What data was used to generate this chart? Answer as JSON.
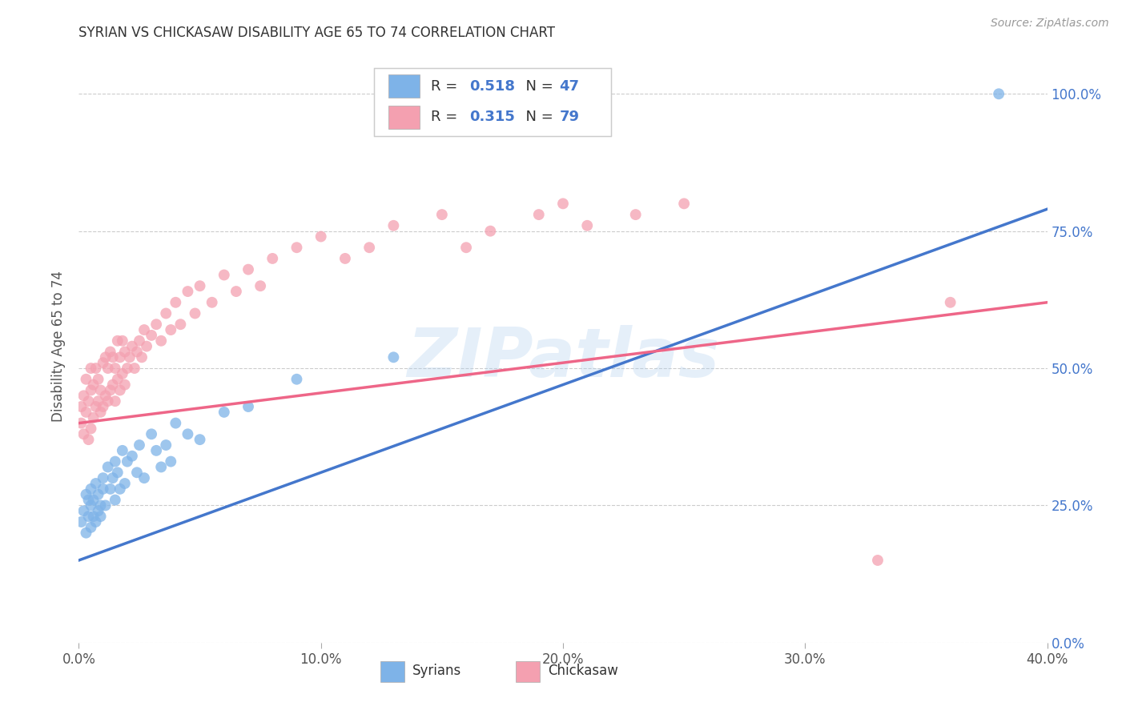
{
  "title": "SYRIAN VS CHICKASAW DISABILITY AGE 65 TO 74 CORRELATION CHART",
  "source": "Source: ZipAtlas.com",
  "ylabel": "Disability Age 65 to 74",
  "xmin": 0.0,
  "xmax": 0.4,
  "ymin": 0.0,
  "ymax": 1.08,
  "yticks": [
    0.0,
    0.25,
    0.5,
    0.75,
    1.0
  ],
  "ytick_labels": [
    "0.0%",
    "25.0%",
    "50.0%",
    "75.0%",
    "100.0%"
  ],
  "xticks": [
    0.0,
    0.1,
    0.2,
    0.3,
    0.4
  ],
  "xtick_labels": [
    "0.0%",
    "10.0%",
    "20.0%",
    "30.0%",
    "40.0%"
  ],
  "syrians_R": 0.518,
  "syrians_N": 47,
  "chickasaw_R": 0.315,
  "chickasaw_N": 79,
  "blue_color": "#7EB3E8",
  "pink_color": "#F4A0B0",
  "blue_line_color": "#4477CC",
  "pink_line_color": "#EE6688",
  "blue_tick_color": "#4477CC",
  "watermark": "ZIPatlas",
  "syrians_x": [
    0.001,
    0.002,
    0.003,
    0.003,
    0.004,
    0.004,
    0.005,
    0.005,
    0.005,
    0.006,
    0.006,
    0.007,
    0.007,
    0.008,
    0.008,
    0.009,
    0.009,
    0.01,
    0.01,
    0.011,
    0.012,
    0.013,
    0.014,
    0.015,
    0.015,
    0.016,
    0.017,
    0.018,
    0.019,
    0.02,
    0.022,
    0.024,
    0.025,
    0.027,
    0.03,
    0.032,
    0.034,
    0.036,
    0.038,
    0.04,
    0.045,
    0.05,
    0.06,
    0.07,
    0.09,
    0.13,
    0.38
  ],
  "syrians_y": [
    0.22,
    0.24,
    0.2,
    0.27,
    0.23,
    0.26,
    0.21,
    0.25,
    0.28,
    0.23,
    0.26,
    0.22,
    0.29,
    0.24,
    0.27,
    0.23,
    0.25,
    0.28,
    0.3,
    0.25,
    0.32,
    0.28,
    0.3,
    0.26,
    0.33,
    0.31,
    0.28,
    0.35,
    0.29,
    0.33,
    0.34,
    0.31,
    0.36,
    0.3,
    0.38,
    0.35,
    0.32,
    0.36,
    0.33,
    0.4,
    0.38,
    0.37,
    0.42,
    0.43,
    0.48,
    0.52,
    1.0
  ],
  "chickasaw_x": [
    0.001,
    0.001,
    0.002,
    0.002,
    0.003,
    0.003,
    0.004,
    0.004,
    0.005,
    0.005,
    0.005,
    0.006,
    0.006,
    0.007,
    0.007,
    0.008,
    0.008,
    0.009,
    0.009,
    0.01,
    0.01,
    0.011,
    0.011,
    0.012,
    0.012,
    0.013,
    0.013,
    0.014,
    0.014,
    0.015,
    0.015,
    0.016,
    0.016,
    0.017,
    0.017,
    0.018,
    0.018,
    0.019,
    0.019,
    0.02,
    0.021,
    0.022,
    0.023,
    0.024,
    0.025,
    0.026,
    0.027,
    0.028,
    0.03,
    0.032,
    0.034,
    0.036,
    0.038,
    0.04,
    0.042,
    0.045,
    0.048,
    0.05,
    0.055,
    0.06,
    0.065,
    0.07,
    0.075,
    0.08,
    0.09,
    0.1,
    0.11,
    0.12,
    0.13,
    0.15,
    0.16,
    0.17,
    0.19,
    0.2,
    0.21,
    0.23,
    0.25,
    0.33,
    0.36
  ],
  "chickasaw_y": [
    0.4,
    0.43,
    0.38,
    0.45,
    0.42,
    0.48,
    0.37,
    0.44,
    0.39,
    0.46,
    0.5,
    0.41,
    0.47,
    0.43,
    0.5,
    0.44,
    0.48,
    0.42,
    0.46,
    0.43,
    0.51,
    0.45,
    0.52,
    0.44,
    0.5,
    0.46,
    0.53,
    0.47,
    0.52,
    0.44,
    0.5,
    0.48,
    0.55,
    0.46,
    0.52,
    0.49,
    0.55,
    0.47,
    0.53,
    0.5,
    0.52,
    0.54,
    0.5,
    0.53,
    0.55,
    0.52,
    0.57,
    0.54,
    0.56,
    0.58,
    0.55,
    0.6,
    0.57,
    0.62,
    0.58,
    0.64,
    0.6,
    0.65,
    0.62,
    0.67,
    0.64,
    0.68,
    0.65,
    0.7,
    0.72,
    0.74,
    0.7,
    0.72,
    0.76,
    0.78,
    0.72,
    0.75,
    0.78,
    0.8,
    0.76,
    0.78,
    0.8,
    0.15,
    0.62
  ]
}
